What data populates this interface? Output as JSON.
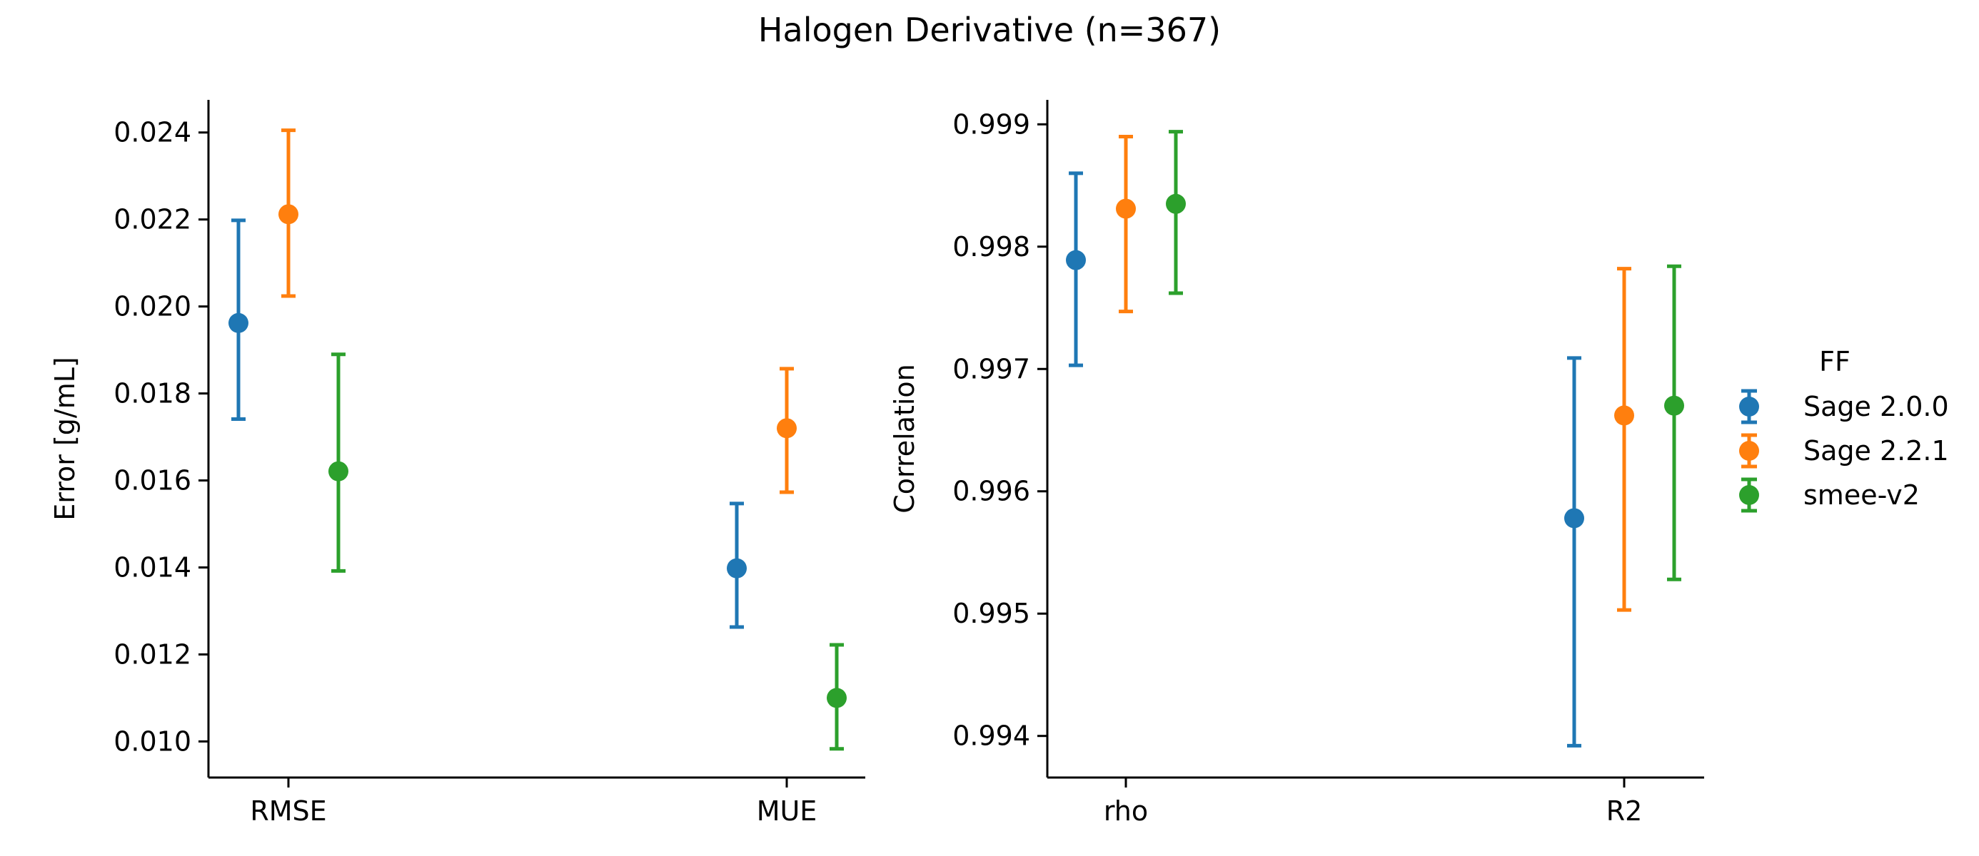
{
  "chart_data": {
    "type": "scatter",
    "title": "Halogen Derivative (n=367)",
    "legend": {
      "title": "FF",
      "placement": "right",
      "entries": [
        {
          "name": "Sage 2.0.0",
          "color": "#1f77b4"
        },
        {
          "name": "Sage 2.2.1",
          "color": "#ff7f0e"
        },
        {
          "name": "smee-v2",
          "color": "#2ca02c"
        }
      ]
    },
    "panels": [
      {
        "ylabel": "Error [g/mL]",
        "xlabel": "",
        "ylim": [
          0.00917,
          0.02475
        ],
        "yticks": [
          "0.010",
          "0.012",
          "0.014",
          "0.016",
          "0.018",
          "0.020",
          "0.022",
          "0.024"
        ],
        "categories": [
          "RMSE",
          "MUE"
        ],
        "series": [
          {
            "name": "Sage 2.0.0",
            "values": [
              0.01962,
              0.01398
            ],
            "lower": [
              0.01741,
              0.01263
            ],
            "upper": [
              0.02198,
              0.01547
            ]
          },
          {
            "name": "Sage 2.2.1",
            "values": [
              0.02212,
              0.0172
            ],
            "lower": [
              0.02024,
              0.01573
            ],
            "upper": [
              0.02405,
              0.01857
            ]
          },
          {
            "name": "smee-v2",
            "values": [
              0.01621,
              0.011
            ],
            "lower": [
              0.01392,
              0.00983
            ],
            "upper": [
              0.0189,
              0.01222
            ]
          }
        ]
      },
      {
        "ylabel": "Correlation",
        "xlabel": "",
        "ylim": [
          0.99366,
          0.9992
        ],
        "yticks": [
          "0.994",
          "0.995",
          "0.996",
          "0.997",
          "0.998",
          "0.999"
        ],
        "categories": [
          "rho",
          "R2"
        ],
        "series": [
          {
            "name": "Sage 2.0.0",
            "values": [
              0.99789,
              0.99578
            ],
            "lower": [
              0.99703,
              0.99392
            ],
            "upper": [
              0.9986,
              0.99709
            ]
          },
          {
            "name": "Sage 2.2.1",
            "values": [
              0.99831,
              0.99662
            ],
            "lower": [
              0.99747,
              0.99503
            ],
            "upper": [
              0.9989,
              0.99782
            ]
          },
          {
            "name": "smee-v2",
            "values": [
              0.99835,
              0.9967
            ],
            "lower": [
              0.99762,
              0.99528
            ],
            "upper": [
              0.99894,
              0.99784
            ]
          }
        ]
      }
    ],
    "grid": false
  }
}
